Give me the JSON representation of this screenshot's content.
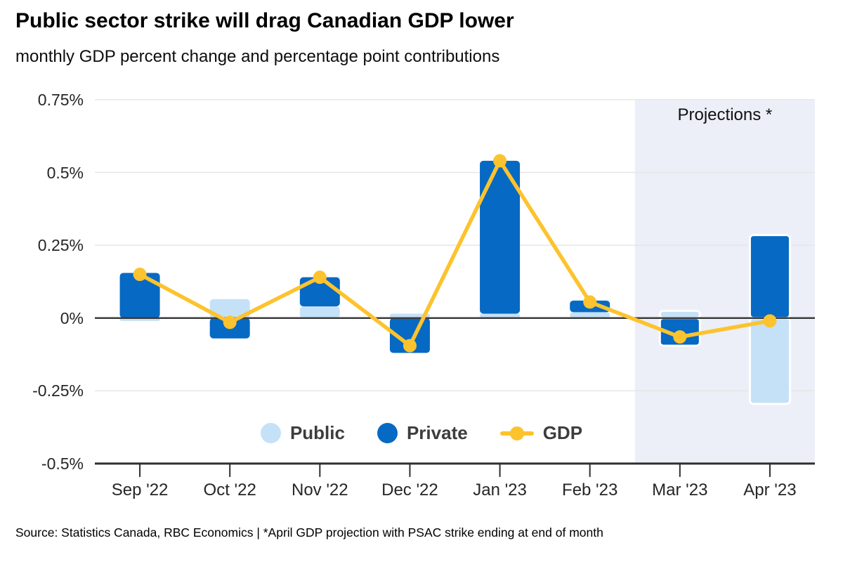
{
  "header": {
    "title": "Public sector strike will drag Canadian GDP lower",
    "subtitle": "monthly GDP percent change and percentage point contributions"
  },
  "footer": {
    "source": "Source: Statistics Canada, RBC Economics | *April GDP projection with PSAC strike ending at end of month"
  },
  "chart_data": {
    "type": "bar",
    "subtype": "stacked bars with line overlay",
    "title": "Public sector strike will drag Canadian GDP lower",
    "subtitle": "monthly GDP percent change and percentage point contributions",
    "categories": [
      "Sep '22",
      "Oct '22",
      "Nov '22",
      "Dec '22",
      "Jan '23",
      "Feb '23",
      "Mar '23",
      "Apr '23"
    ],
    "series": [
      {
        "name": "Public",
        "type": "bar",
        "color": "#c5e1f8",
        "values": [
          -0.01,
          0.065,
          0.04,
          0.015,
          0.015,
          0.02,
          0.025,
          -0.295
        ]
      },
      {
        "name": "Private",
        "type": "bar",
        "color": "#0669c3",
        "values": [
          0.155,
          -0.07,
          0.1,
          -0.12,
          0.525,
          0.04,
          -0.095,
          0.285
        ]
      },
      {
        "name": "GDP",
        "type": "line",
        "color": "#fdc32e",
        "values": [
          0.15,
          -0.015,
          0.14,
          -0.095,
          0.54,
          0.055,
          -0.065,
          -0.01
        ]
      }
    ],
    "units": "percent",
    "ylim": [
      -0.5,
      0.75
    ],
    "yticks": [
      {
        "value": 0.75,
        "label": "0.75%"
      },
      {
        "value": 0.5,
        "label": "0.5%"
      },
      {
        "value": 0.25,
        "label": "0.25%"
      },
      {
        "value": 0,
        "label": "0%"
      },
      {
        "value": -0.25,
        "label": "-0.25%"
      },
      {
        "value": -0.5,
        "label": "-0.5%"
      }
    ],
    "grid": "horizontal",
    "legend_position": "bottom-center-inside",
    "projection": {
      "label": "Projections *",
      "start_category": "Mar '23",
      "band_color": "#eceff7"
    },
    "colors": {
      "axis": "#2f2f2f",
      "zero_line": "#3c3c3c",
      "gridline": "#e6e6e6",
      "projection_bar_outline": "#ffffff"
    }
  }
}
